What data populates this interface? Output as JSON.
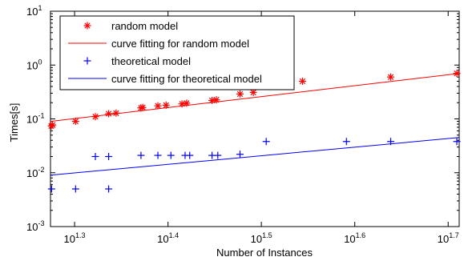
{
  "chart_data": {
    "type": "scatter",
    "xlabel": "Number of Instances",
    "ylabel": "Times[s]",
    "x_scale": "log10",
    "y_scale": "log10",
    "xlim": [
      18.8,
      51.5
    ],
    "ylim": [
      0.001,
      10
    ],
    "x_ticks": [
      {
        "value": 19.95,
        "base": "10",
        "exp": "1.3"
      },
      {
        "value": 25.12,
        "base": "10",
        "exp": "1.4"
      },
      {
        "value": 31.62,
        "base": "10",
        "exp": "1.5"
      },
      {
        "value": 39.81,
        "base": "10",
        "exp": "1.6"
      },
      {
        "value": 50.12,
        "base": "10",
        "exp": "1.7"
      }
    ],
    "y_ticks": [
      {
        "value": 0.001,
        "base": "10",
        "exp": "-3"
      },
      {
        "value": 0.01,
        "base": "10",
        "exp": "-2"
      },
      {
        "value": 0.1,
        "base": "10",
        "exp": "-1"
      },
      {
        "value": 1,
        "base": "10",
        "exp": "0"
      },
      {
        "value": 10,
        "base": "10",
        "exp": "1"
      }
    ],
    "grid": false,
    "legend_position": "top-left",
    "series": [
      {
        "name": "random model",
        "kind": "markers",
        "marker": "asterisk",
        "color": "#ff0000",
        "points": [
          [
            18.8,
            0.074
          ],
          [
            18.9,
            0.077
          ],
          [
            20.0,
            0.09
          ],
          [
            21.0,
            0.11
          ],
          [
            21.7,
            0.125
          ],
          [
            22.1,
            0.128
          ],
          [
            23.5,
            0.16
          ],
          [
            23.6,
            0.163
          ],
          [
            24.5,
            0.175
          ],
          [
            25.0,
            0.18
          ],
          [
            26.0,
            0.19
          ],
          [
            26.3,
            0.196
          ],
          [
            28.0,
            0.22
          ],
          [
            28.3,
            0.226
          ],
          [
            30.0,
            0.29
          ],
          [
            31.0,
            0.31
          ],
          [
            33.0,
            0.41
          ],
          [
            35.0,
            0.5
          ],
          [
            43.5,
            0.6
          ],
          [
            51.2,
            0.7
          ]
        ]
      },
      {
        "name": "curve fitting for random model",
        "kind": "line",
        "color": "#ff0000",
        "points": [
          [
            18.8,
            0.09
          ],
          [
            51.5,
            0.7
          ]
        ]
      },
      {
        "name": "theoretical model",
        "kind": "markers",
        "marker": "plus",
        "color": "#0000ff",
        "points": [
          [
            18.85,
            0.005
          ],
          [
            20.0,
            0.005
          ],
          [
            21.0,
            0.02
          ],
          [
            21.7,
            0.02
          ],
          [
            21.7,
            0.005
          ],
          [
            23.5,
            0.021
          ],
          [
            24.5,
            0.021
          ],
          [
            25.3,
            0.021
          ],
          [
            26.2,
            0.021
          ],
          [
            26.5,
            0.021
          ],
          [
            28.0,
            0.021
          ],
          [
            28.4,
            0.021
          ],
          [
            30.0,
            0.022
          ],
          [
            32.0,
            0.038
          ],
          [
            39.0,
            0.038
          ],
          [
            43.5,
            0.038
          ],
          [
            51.2,
            0.038
          ]
        ]
      },
      {
        "name": "curve fitting for theoretical model",
        "kind": "line",
        "color": "#0000ff",
        "points": [
          [
            18.8,
            0.009
          ],
          [
            51.5,
            0.045
          ]
        ]
      }
    ]
  }
}
